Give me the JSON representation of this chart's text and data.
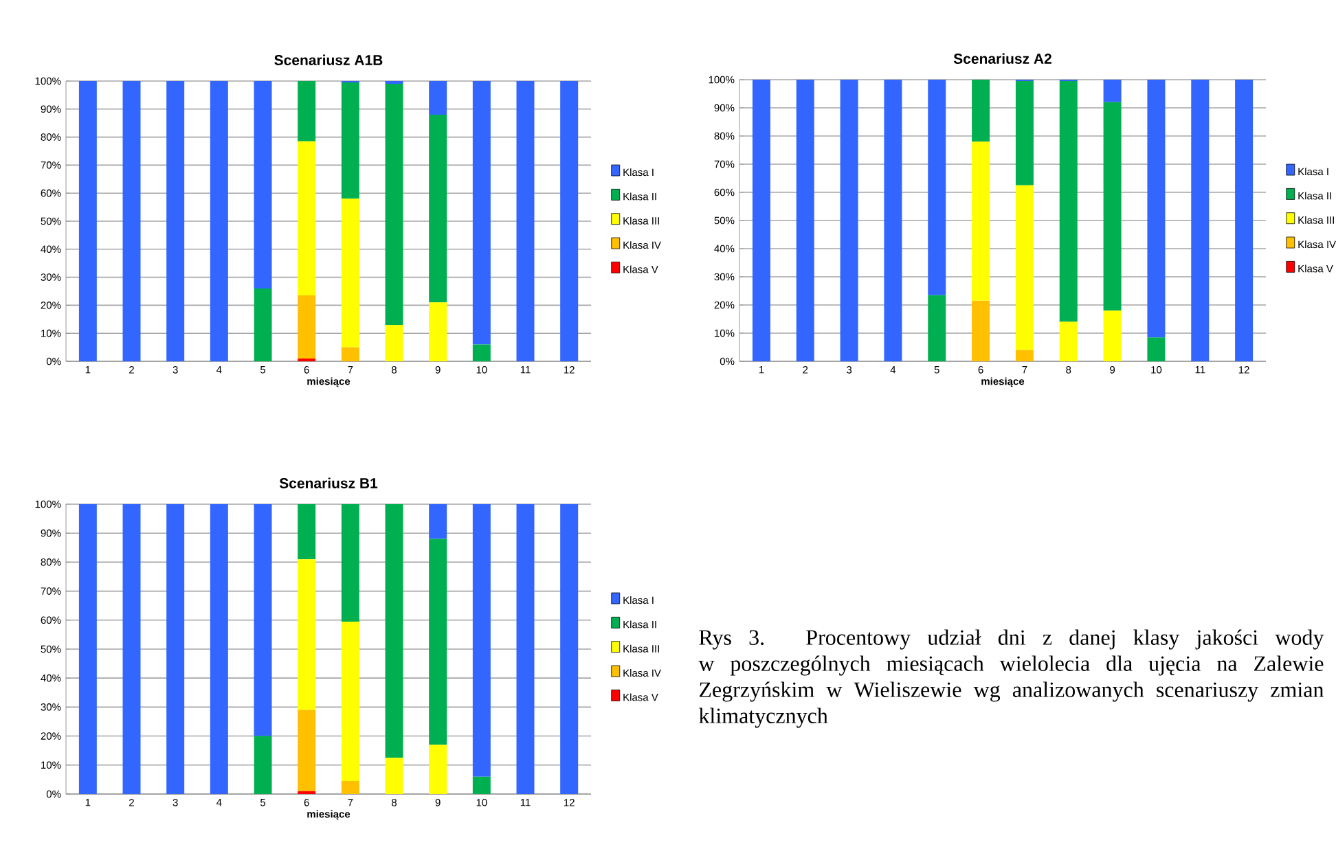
{
  "chart_data": [
    {
      "type": "bar",
      "stacked": true,
      "title": "Scenariusz A1B",
      "xlabel": "miesiące",
      "categories": [
        "1",
        "2",
        "3",
        "4",
        "5",
        "6",
        "7",
        "8",
        "9",
        "10",
        "11",
        "12"
      ],
      "ylim": [
        0,
        100
      ],
      "yticks": [
        {
          "value": 0,
          "label": "0%"
        },
        {
          "value": 10,
          "label": "10%"
        },
        {
          "value": 20,
          "label": "20%"
        },
        {
          "value": 30,
          "label": "30%"
        },
        {
          "value": 40,
          "label": "40%"
        },
        {
          "value": 50,
          "label": "50%"
        },
        {
          "value": 60,
          "label": "60%"
        },
        {
          "value": 70,
          "label": "70%"
        },
        {
          "value": 80,
          "label": "80%"
        },
        {
          "value": 90,
          "label": "90%"
        },
        {
          "value": 100,
          "label": "100%"
        }
      ],
      "grid": "y",
      "legend": "right",
      "series": [
        {
          "name": "Klasa V",
          "color": "#ff0000",
          "values": [
            0,
            0,
            0,
            0,
            0,
            1,
            0,
            0,
            0,
            0,
            0,
            0
          ]
        },
        {
          "name": "Klasa IV",
          "color": "#ffc000",
          "values": [
            0,
            0,
            0,
            0,
            0,
            22.5,
            5,
            0,
            0,
            0,
            0,
            0
          ]
        },
        {
          "name": "Klasa III",
          "color": "#ffff00",
          "values": [
            0,
            0,
            0,
            0,
            0,
            55,
            53,
            13,
            21,
            0,
            0,
            0
          ]
        },
        {
          "name": "Klasa II",
          "color": "#00b050",
          "values": [
            0,
            0,
            0,
            0,
            26,
            21.5,
            41.5,
            86,
            67,
            6,
            0,
            0
          ]
        },
        {
          "name": "Klasa I",
          "color": "#3366ff",
          "values": [
            100,
            100,
            100,
            100,
            74,
            0,
            0.5,
            1,
            12,
            94,
            100,
            100
          ]
        }
      ]
    },
    {
      "type": "bar",
      "stacked": true,
      "title": "Scenariusz A2",
      "xlabel": "miesiące",
      "categories": [
        "1",
        "2",
        "3",
        "4",
        "5",
        "6",
        "7",
        "8",
        "9",
        "10",
        "11",
        "12"
      ],
      "ylim": [
        0,
        100
      ],
      "yticks": [
        {
          "value": 0,
          "label": "0%"
        },
        {
          "value": 10,
          "label": "10%"
        },
        {
          "value": 20,
          "label": "20%"
        },
        {
          "value": 30,
          "label": "30%"
        },
        {
          "value": 40,
          "label": "40%"
        },
        {
          "value": 50,
          "label": "50%"
        },
        {
          "value": 60,
          "label": "60%"
        },
        {
          "value": 70,
          "label": "70%"
        },
        {
          "value": 80,
          "label": "80%"
        },
        {
          "value": 90,
          "label": "90%"
        },
        {
          "value": 100,
          "label": "100%"
        }
      ],
      "grid": "y",
      "legend": "right",
      "series": [
        {
          "name": "Klasa V",
          "color": "#ff0000",
          "values": [
            0,
            0,
            0,
            0,
            0,
            0,
            0,
            0,
            0,
            0,
            0,
            0
          ]
        },
        {
          "name": "Klasa IV",
          "color": "#ffc000",
          "values": [
            0,
            0,
            0,
            0,
            0,
            21.5,
            4,
            0,
            0,
            0,
            0,
            0
          ]
        },
        {
          "name": "Klasa III",
          "color": "#ffff00",
          "values": [
            0,
            0,
            0,
            0,
            0,
            56.5,
            58.5,
            14,
            18,
            0,
            0,
            0
          ]
        },
        {
          "name": "Klasa II",
          "color": "#00b050",
          "values": [
            0,
            0,
            0,
            0,
            23.5,
            22,
            37,
            85.5,
            74,
            8.5,
            0,
            0
          ]
        },
        {
          "name": "Klasa I",
          "color": "#3366ff",
          "values": [
            100,
            100,
            100,
            100,
            76.5,
            0,
            0.5,
            0.5,
            8,
            91.5,
            100,
            100
          ]
        }
      ]
    },
    {
      "type": "bar",
      "stacked": true,
      "title": "Scenariusz B1",
      "xlabel": "miesiące",
      "categories": [
        "1",
        "2",
        "3",
        "4",
        "5",
        "6",
        "7",
        "8",
        "9",
        "10",
        "11",
        "12"
      ],
      "ylim": [
        0,
        100
      ],
      "yticks": [
        {
          "value": 0,
          "label": "0%"
        },
        {
          "value": 10,
          "label": "10%"
        },
        {
          "value": 20,
          "label": "20%"
        },
        {
          "value": 30,
          "label": "30%"
        },
        {
          "value": 40,
          "label": "40%"
        },
        {
          "value": 50,
          "label": "50%"
        },
        {
          "value": 60,
          "label": "60%"
        },
        {
          "value": 70,
          "label": "70%"
        },
        {
          "value": 80,
          "label": "80%"
        },
        {
          "value": 90,
          "label": "90%"
        },
        {
          "value": 100,
          "label": "100%"
        }
      ],
      "grid": "y",
      "legend": "right",
      "annotations": [
        "Rys 3. Procentowy udział dni z danej klasy jakości wody w poszczególnych miesiącach wielolecia dla ujęcia na Zalewie Zegrzyńskim w Wieliszewie wg analizowanych scenariuszy zmian klimatycznych"
      ],
      "series": [
        {
          "name": "Klasa V",
          "color": "#ff0000",
          "values": [
            0,
            0,
            0,
            0,
            0,
            1,
            0,
            0,
            0,
            0,
            0,
            0
          ]
        },
        {
          "name": "Klasa IV",
          "color": "#ffc000",
          "values": [
            0,
            0,
            0,
            0,
            0,
            28,
            4.5,
            0,
            0,
            0,
            0,
            0
          ]
        },
        {
          "name": "Klasa III",
          "color": "#ffff00",
          "values": [
            0,
            0,
            0,
            0,
            0,
            52,
            55,
            12.5,
            17,
            0,
            0,
            0
          ]
        },
        {
          "name": "Klasa II",
          "color": "#00b050",
          "values": [
            0,
            0,
            0,
            0,
            20,
            19,
            40.5,
            87.5,
            71,
            6,
            0,
            0
          ]
        },
        {
          "name": "Klasa I",
          "color": "#3366ff",
          "values": [
            100,
            100,
            100,
            100,
            80,
            0,
            0,
            0,
            12,
            94,
            100,
            100
          ]
        }
      ]
    }
  ]
}
